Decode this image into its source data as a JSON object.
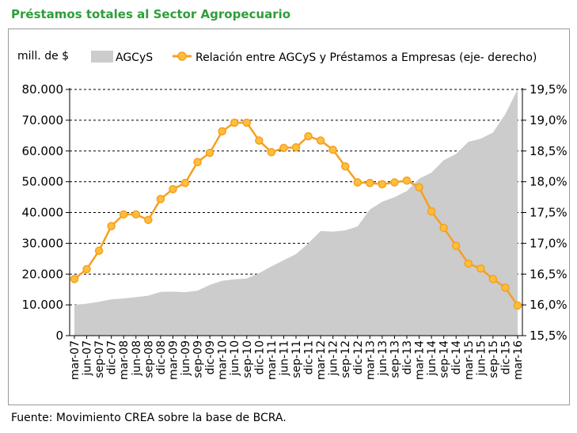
{
  "title": "Préstamos totales al Sector Agropecuario",
  "source": "Fuente: Movimiento CREA sobre la base de BCRA.",
  "chart_data": {
    "type": "area+line",
    "ylabel": "mill. de $",
    "ylim": [
      0,
      80000
    ],
    "y_ticks": [
      "0",
      "10.000",
      "20.000",
      "30.000",
      "40.000",
      "50.000",
      "60.000",
      "70.000",
      "80.000"
    ],
    "y2lim": [
      15.5,
      19.5
    ],
    "y2_ticks": [
      "15,5%",
      "16,0%",
      "16,5%",
      "17,0%",
      "17,5%",
      "18,0%",
      "18,5%",
      "19,0%",
      "19,5%"
    ],
    "grid": true,
    "legend_placement": "top",
    "colors": {
      "area": "#cccccc",
      "line": "#f5a020",
      "marker_fill": "#ffbf3a",
      "title": "#2e9e3a"
    },
    "x": [
      "mar-07",
      "jun-07",
      "sep-07",
      "dic-07",
      "mar-08",
      "jun-08",
      "sep-08",
      "dic-08",
      "mar-09",
      "jun-09",
      "sep-09",
      "dic-09",
      "mar-10",
      "jun-10",
      "sep-10",
      "dic-10",
      "mar-11",
      "jun-11",
      "sep-11",
      "dic-11",
      "mar-12",
      "jun-12",
      "sep-12",
      "dic-12",
      "mar-13",
      "jun-13",
      "sep-13",
      "dic-13",
      "mar-14",
      "jun-14",
      "sep-14",
      "dic-14",
      "mar-15",
      "jun-15",
      "sep-15",
      "dic-15",
      "mar-16"
    ],
    "series": [
      {
        "name": "AGCyS",
        "kind": "area",
        "axis": "left",
        "values": [
          10000,
          10400,
          11000,
          11800,
          12100,
          12500,
          13000,
          14200,
          14300,
          14100,
          14600,
          16500,
          17800,
          18300,
          18600,
          20300,
          22500,
          24500,
          26500,
          30000,
          34000,
          33800,
          34200,
          35500,
          41000,
          43500,
          45000,
          47000,
          51000,
          53000,
          57000,
          59000,
          63000,
          64000,
          66000,
          72000,
          80000
        ]
      },
      {
        "name": "Relación entre AGCyS y Préstamos a Empresas (eje- derecho)",
        "kind": "line",
        "axis": "right",
        "values": [
          16.42,
          16.58,
          16.88,
          17.28,
          17.47,
          17.47,
          17.38,
          17.72,
          17.88,
          17.98,
          18.32,
          18.47,
          18.82,
          18.96,
          18.96,
          18.67,
          18.48,
          18.55,
          18.56,
          18.74,
          18.67,
          18.52,
          18.25,
          17.99,
          17.98,
          17.96,
          17.99,
          18.02,
          17.91,
          17.52,
          17.25,
          16.96,
          16.67,
          16.59,
          16.42,
          16.28,
          15.99
        ]
      }
    ]
  }
}
